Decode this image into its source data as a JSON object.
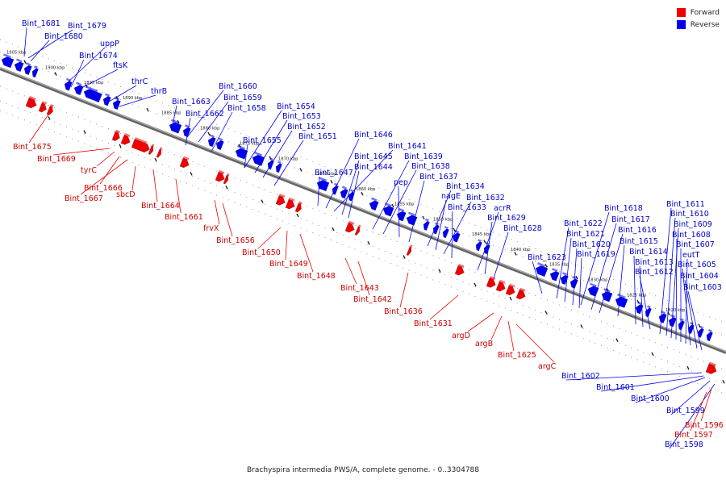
{
  "legend": {
    "forward": {
      "label": "Forward",
      "color": "#ee0000"
    },
    "reverse": {
      "label": "Reverse",
      "color": "#0000ee"
    }
  },
  "caption": "Brachyspira intermedia PWS/A, complete genome. - 0..3304788",
  "ticks": [
    "1905 kbp",
    "1900 kbp",
    "1895 kbp",
    "1890 kbp",
    "1885 kbp",
    "1880 kbp",
    "1875 kbp",
    "1870 kbp",
    "1865 kbp",
    "1860 kbp",
    "1855 kbp",
    "1850 kbp",
    "1845 kbp",
    "1840 kbp",
    "1835 kbp",
    "1830 kbp",
    "1825 kbp",
    "1820 kbp"
  ],
  "reverse_genes": [
    "Bint_1681",
    "Bint_1679",
    "Bint_1680",
    "uppP",
    "Bint_1674",
    "ftsK",
    "thrC",
    "thrB",
    "Bint_1663",
    "Bint_1660",
    "Bint_1659",
    "Bint_1662",
    "Bint_1658",
    "Bint_1654",
    "Bint_1653",
    "Bint_1652",
    "Bint_1655",
    "Bint_1651",
    "Bint_1646",
    "Bint_1641",
    "Bint_1645",
    "Bint_1639",
    "Bint_1644",
    "Bint_1638",
    "Bint_1647",
    "pep",
    "Bint_1637",
    "Bint_1634",
    "nagE",
    "Bint_1632",
    "Bint_1633",
    "acrR",
    "Bint_1629",
    "Bint_1628",
    "Bint_1623",
    "Bint_1618",
    "Bint_1622",
    "Bint_1617",
    "Bint_1621",
    "Bint_1616",
    "Bint_1620",
    "Bint_1615",
    "Bint_1619",
    "Bint_1614",
    "Bint_1613",
    "Bint_1612",
    "Bint_1611",
    "Bint_1610",
    "Bint_1609",
    "Bint_1608",
    "Bint_1607",
    "eutT",
    "Bint_1605",
    "Bint_1604",
    "Bint_1603",
    "Bint_1602",
    "Bint_1601",
    "Bint_1600",
    "Bint_1599",
    "Bint_1598"
  ],
  "forward_genes": [
    "Bint_1675",
    "Bint_1669",
    "tyrC",
    "Bint_1666",
    "Bint_1667",
    "sbcD",
    "Bint_1664",
    "Bint_1661",
    "frvX",
    "Bint_1656",
    "Bint_1650",
    "Bint_1649",
    "Bint_1648",
    "Bint_1643",
    "Bint_1642",
    "Bint_1636",
    "Bint_1631",
    "argD",
    "argB",
    "Bint_1625",
    "argC",
    "Bint_1596",
    "Bint_1597"
  ]
}
